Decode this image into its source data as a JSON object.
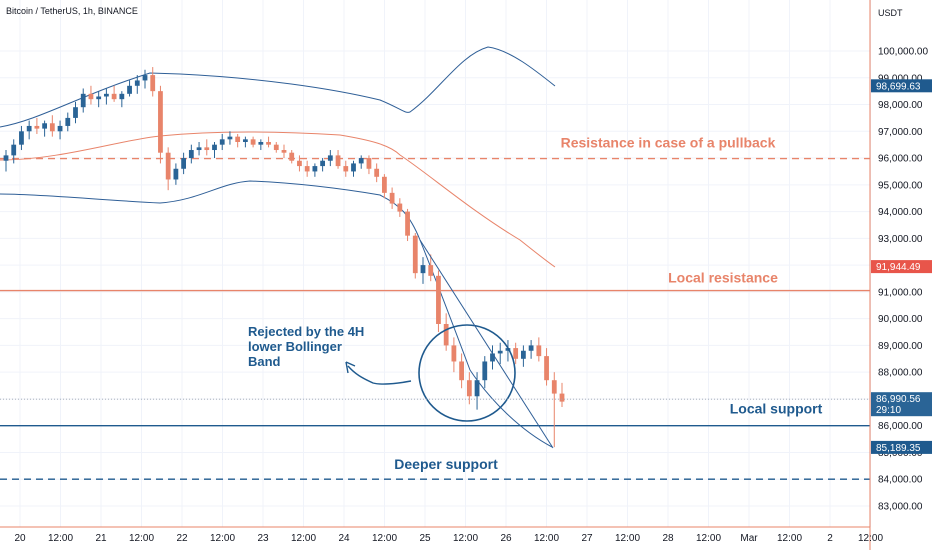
{
  "header": {
    "symbol": "Bitcoin / TetherUS, 1h, BINANCE",
    "currency": "USDT"
  },
  "colors": {
    "up": "#2a6496",
    "down": "#e8846a",
    "blue": "#1f5a8e",
    "orange": "#e8846a",
    "axis": "#e8846a",
    "grid": "#f0f3fa"
  },
  "chart_data": {
    "type": "candlestick",
    "title": "Bitcoin / TetherUS, 1h, BINANCE",
    "y_unit": "USDT",
    "ylim": [
      82400,
      101500
    ],
    "y_ticks": [
      "100,000.00",
      "99,000.00",
      "98,000.00",
      "97,000.00",
      "96,000.00",
      "95,000.00",
      "94,000.00",
      "93,000.00",
      "92,000.00",
      "91,000.00",
      "90,000.00",
      "89,000.00",
      "88,000.00",
      "87,000.00",
      "86,000.00",
      "85,000.00",
      "84,000.00",
      "83,000.00"
    ],
    "x_ticks": [
      "20",
      "12:00",
      "21",
      "12:00",
      "22",
      "12:00",
      "23",
      "12:00",
      "24",
      "12:00",
      "25",
      "12:00",
      "26",
      "12:00",
      "27",
      "12:00",
      "28",
      "12:00",
      "Mar",
      "12:00",
      "2",
      "12:00"
    ],
    "price_labels": [
      {
        "value": "98,699.63",
        "color": "#1f5a8e"
      },
      {
        "value": "91,944.49",
        "color": "#e8554a"
      },
      {
        "value": "86,990.56",
        "sub": "29:10",
        "color": "#2a6496"
      },
      {
        "value": "85,189.35",
        "color": "#1f5a8e"
      }
    ],
    "levels": [
      {
        "name": "Resistance in case of a pullback",
        "price": 95980,
        "color": "#e8846a",
        "style": "dashed"
      },
      {
        "name": "Local resistance",
        "price": 91050,
        "color": "#e8846a",
        "style": "solid"
      },
      {
        "name": "Local support",
        "price": 86000,
        "color": "#1f5a8e",
        "style": "solid"
      },
      {
        "name": "Deeper support",
        "price": 84000,
        "color": "#1f5a8e",
        "style": "dashed"
      }
    ],
    "annotation": {
      "lines": [
        "Rejected by the 4H",
        "lower Bollinger",
        "Band"
      ]
    },
    "candles": [
      [
        95900,
        96300,
        95500,
        96100
      ],
      [
        96100,
        96700,
        95800,
        96500
      ],
      [
        96500,
        97200,
        96300,
        97000
      ],
      [
        97000,
        97400,
        96700,
        97200
      ],
      [
        97200,
        97500,
        96900,
        97100
      ],
      [
        97100,
        97400,
        96800,
        97300
      ],
      [
        97300,
        97600,
        96800,
        97000
      ],
      [
        97000,
        97400,
        96700,
        97200
      ],
      [
        97200,
        97700,
        97000,
        97500
      ],
      [
        97500,
        98100,
        97300,
        97900
      ],
      [
        97900,
        98600,
        97700,
        98400
      ],
      [
        98400,
        98700,
        98000,
        98200
      ],
      [
        98200,
        98500,
        97900,
        98300
      ],
      [
        98300,
        98600,
        98000,
        98400
      ],
      [
        98400,
        98700,
        98100,
        98200
      ],
      [
        98200,
        98500,
        97900,
        98400
      ],
      [
        98400,
        98900,
        98300,
        98700
      ],
      [
        98700,
        99100,
        98400,
        98900
      ],
      [
        98900,
        99300,
        98600,
        99100
      ],
      [
        99100,
        99400,
        98300,
        98500
      ],
      [
        98500,
        98700,
        95800,
        96200
      ],
      [
        96200,
        96400,
        94800,
        95200
      ],
      [
        95200,
        95800,
        95000,
        95600
      ],
      [
        95600,
        96200,
        95400,
        96000
      ],
      [
        96000,
        96500,
        95800,
        96300
      ],
      [
        96300,
        96600,
        96100,
        96400
      ],
      [
        96400,
        96700,
        96100,
        96300
      ],
      [
        96300,
        96600,
        96000,
        96500
      ],
      [
        96500,
        96900,
        96300,
        96700
      ],
      [
        96700,
        97000,
        96500,
        96800
      ],
      [
        96800,
        96900,
        96400,
        96600
      ],
      [
        96600,
        96800,
        96400,
        96700
      ],
      [
        96700,
        96800,
        96400,
        96500
      ],
      [
        96500,
        96700,
        96300,
        96600
      ],
      [
        96600,
        96800,
        96400,
        96500
      ],
      [
        96500,
        96600,
        96200,
        96300
      ],
      [
        96300,
        96500,
        96000,
        96200
      ],
      [
        96200,
        96300,
        95800,
        95900
      ],
      [
        95900,
        96100,
        95500,
        95700
      ],
      [
        95700,
        95900,
        95300,
        95500
      ],
      [
        95500,
        95800,
        95300,
        95700
      ],
      [
        95700,
        96000,
        95500,
        95900
      ],
      [
        95900,
        96300,
        95700,
        96100
      ],
      [
        96100,
        96300,
        95600,
        95700
      ],
      [
        95700,
        95900,
        95300,
        95500
      ],
      [
        95500,
        95900,
        95300,
        95800
      ],
      [
        95800,
        96100,
        95600,
        96000
      ],
      [
        96000,
        96100,
        95400,
        95600
      ],
      [
        95600,
        95800,
        95100,
        95300
      ],
      [
        95300,
        95400,
        94500,
        94700
      ],
      [
        94700,
        94900,
        94100,
        94300
      ],
      [
        94300,
        94500,
        93800,
        94000
      ],
      [
        94000,
        94100,
        92900,
        93100
      ],
      [
        93100,
        93200,
        91500,
        91700
      ],
      [
        91700,
        92300,
        91300,
        92000
      ],
      [
        92000,
        92400,
        91400,
        91600
      ],
      [
        91600,
        91800,
        89500,
        89800
      ],
      [
        89800,
        90200,
        88800,
        89000
      ],
      [
        89000,
        89300,
        88000,
        88400
      ],
      [
        88400,
        88700,
        87400,
        87700
      ],
      [
        87700,
        88000,
        86800,
        87100
      ],
      [
        87100,
        88000,
        86600,
        87700
      ],
      [
        87700,
        88600,
        87400,
        88400
      ],
      [
        88400,
        89000,
        88100,
        88700
      ],
      [
        88700,
        89100,
        88300,
        88800
      ],
      [
        88800,
        89200,
        88400,
        88900
      ],
      [
        88900,
        89100,
        88300,
        88500
      ],
      [
        88500,
        89000,
        88200,
        88800
      ],
      [
        88800,
        89200,
        88500,
        89000
      ],
      [
        89000,
        89300,
        88400,
        88600
      ],
      [
        88600,
        88900,
        87500,
        87700
      ],
      [
        87700,
        88000,
        85200,
        87200
      ],
      [
        87200,
        87600,
        86700,
        86900
      ]
    ]
  }
}
